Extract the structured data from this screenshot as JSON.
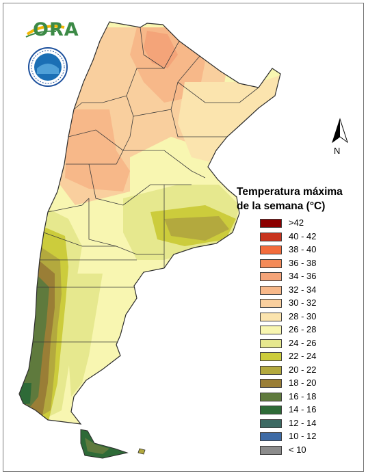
{
  "header": {
    "logo_text": "ORA",
    "seal_name": "seal-icon"
  },
  "north_arrow": {
    "label": "N"
  },
  "legend": {
    "title_line1": "Temperatura máxima",
    "title_line2": "de la semana (°C)",
    "items": [
      {
        "label": ">42",
        "color": "#8b0000"
      },
      {
        "label": "40 - 42",
        "color": "#c8341e"
      },
      {
        "label": "38 - 40",
        "color": "#f26c3c"
      },
      {
        "label": "36 - 38",
        "color": "#f48a58"
      },
      {
        "label": "34 - 36",
        "color": "#f4a479"
      },
      {
        "label": "32 - 34",
        "color": "#f7b889"
      },
      {
        "label": "30 - 32",
        "color": "#f9cf9e"
      },
      {
        "label": "28 - 30",
        "color": "#fbe4ae"
      },
      {
        "label": "26 - 28",
        "color": "#f8f6b1"
      },
      {
        "label": "24 - 26",
        "color": "#e6e88e"
      },
      {
        "label": "22 - 24",
        "color": "#cccc3c"
      },
      {
        "label": "20 - 22",
        "color": "#b3a93e"
      },
      {
        "label": "18 - 20",
        "color": "#9a7e36"
      },
      {
        "label": "16 - 18",
        "color": "#5f7a3d"
      },
      {
        "label": "14 - 16",
        "color": "#2e6a37"
      },
      {
        "label": "12 - 14",
        "color": "#3c6a63"
      },
      {
        "label": "10 - 12",
        "color": "#3e6ba5"
      },
      {
        "label": "< 10",
        "color": "#8c8c8c"
      }
    ]
  }
}
